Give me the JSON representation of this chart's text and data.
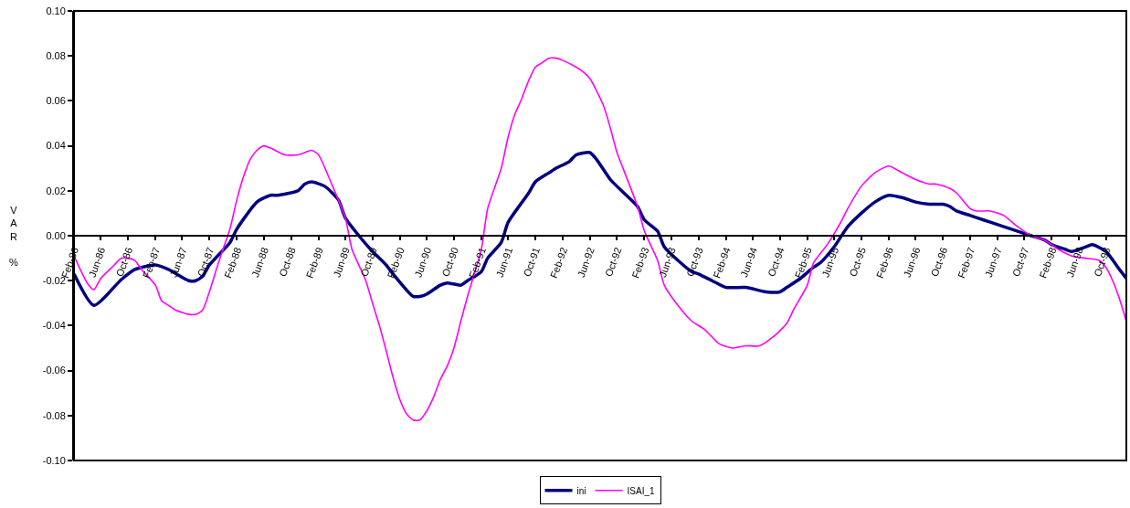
{
  "chart_data": {
    "type": "line",
    "ylabel": "VAR %",
    "legend": "bottom",
    "line_style": "solid",
    "marker": "none",
    "xlim": [
      "1986-02",
      "1999-01"
    ],
    "xticks": [
      {
        "value": "1986-02",
        "label": "Feb-86"
      },
      {
        "value": "1986-06",
        "label": "Jun-86"
      },
      {
        "value": "1986-10",
        "label": "Oct-86"
      },
      {
        "value": "1987-02",
        "label": "Feb-87"
      },
      {
        "value": "1987-06",
        "label": "Jun-87"
      },
      {
        "value": "1987-10",
        "label": "Oct-87"
      },
      {
        "value": "1988-02",
        "label": "Feb-88"
      },
      {
        "value": "1988-06",
        "label": "Jun-88"
      },
      {
        "value": "1988-10",
        "label": "Oct-88"
      },
      {
        "value": "1989-02",
        "label": "Feb-89"
      },
      {
        "value": "1989-06",
        "label": "Jun-89"
      },
      {
        "value": "1989-10",
        "label": "Oct-89"
      },
      {
        "value": "1990-02",
        "label": "Feb-90"
      },
      {
        "value": "1990-06",
        "label": "Jun-90"
      },
      {
        "value": "1990-10",
        "label": "Oct-90"
      },
      {
        "value": "1991-02",
        "label": "Feb-91"
      },
      {
        "value": "1991-06",
        "label": "Jun-91"
      },
      {
        "value": "1991-10",
        "label": "Oct-91"
      },
      {
        "value": "1992-02",
        "label": "Feb-92"
      },
      {
        "value": "1992-06",
        "label": "Jun-92"
      },
      {
        "value": "1992-10",
        "label": "Oct-92"
      },
      {
        "value": "1993-02",
        "label": "Feb-93"
      },
      {
        "value": "1993-06",
        "label": "Jun-93"
      },
      {
        "value": "1993-10",
        "label": "Oct-93"
      },
      {
        "value": "1994-02",
        "label": "Feb-94"
      },
      {
        "value": "1994-06",
        "label": "Jun-94"
      },
      {
        "value": "1994-10",
        "label": "Oct-94"
      },
      {
        "value": "1995-02",
        "label": "Feb-95"
      },
      {
        "value": "1995-06",
        "label": "Jun-95"
      },
      {
        "value": "1995-10",
        "label": "Oct-95"
      },
      {
        "value": "1996-02",
        "label": "Feb-96"
      },
      {
        "value": "1996-06",
        "label": "Jun-96"
      },
      {
        "value": "1996-10",
        "label": "Oct-96"
      },
      {
        "value": "1997-02",
        "label": "Feb-97"
      },
      {
        "value": "1997-06",
        "label": "Jun-97"
      },
      {
        "value": "1997-10",
        "label": "Oct-97"
      },
      {
        "value": "1998-02",
        "label": "Feb-98"
      },
      {
        "value": "1998-06",
        "label": "Jun-98"
      },
      {
        "value": "1998-10",
        "label": "Oct-98"
      }
    ],
    "ylim": [
      -0.1,
      0.1
    ],
    "yticks": [
      {
        "value": -0.1,
        "label": "-0.10"
      },
      {
        "value": -0.08,
        "label": "-0.08"
      },
      {
        "value": -0.06,
        "label": "-0.06"
      },
      {
        "value": -0.04,
        "label": "-0.04"
      },
      {
        "value": -0.02,
        "label": "-0.02"
      },
      {
        "value": 0,
        "label": "0.00"
      },
      {
        "value": 0.02,
        "label": "0.02"
      },
      {
        "value": 0.04,
        "label": "0.04"
      },
      {
        "value": 0.06,
        "label": "0.06"
      },
      {
        "value": 0.08,
        "label": "0.08"
      },
      {
        "value": 0.1,
        "label": "0.10"
      }
    ],
    "series": [
      {
        "name": "ini",
        "color": "#000080",
        "x": [
          "1986-02",
          "1986-05",
          "1986-09",
          "1986-11",
          "1987-02",
          "1987-04",
          "1987-07",
          "1987-08",
          "1987-09",
          "1987-10",
          "1988-01",
          "1988-02",
          "1988-05",
          "1988-07",
          "1988-08",
          "1988-11",
          "1988-12",
          "1989-01",
          "1989-03",
          "1989-05",
          "1989-06",
          "1989-08",
          "1989-10",
          "1989-12",
          "1990-01",
          "1990-04",
          "1990-05",
          "1990-06",
          "1990-08",
          "1990-09",
          "1990-11",
          "1990-12",
          "1991-02",
          "1991-03",
          "1991-05",
          "1991-06",
          "1991-09",
          "1991-10",
          "1991-12",
          "1992-01",
          "1992-03",
          "1992-04",
          "1992-06",
          "1992-07",
          "1992-09",
          "1992-11",
          "1993-01",
          "1993-02",
          "1993-04",
          "1993-05",
          "1993-07",
          "1993-09",
          "1993-10",
          "1993-12",
          "1994-02",
          "1994-05",
          "1994-08",
          "1994-10",
          "1994-11",
          "1995-01",
          "1995-03",
          "1995-04",
          "1995-06",
          "1995-08",
          "1995-10",
          "1995-12",
          "1996-02",
          "1996-04",
          "1996-06",
          "1996-08",
          "1996-10",
          "1996-11",
          "1996-12",
          "1997-02",
          "1997-04",
          "1997-06",
          "1997-07",
          "1997-09",
          "1997-11",
          "1998-01",
          "1998-02",
          "1998-04",
          "1998-05",
          "1998-07",
          "1998-08",
          "1998-10",
          "1998-12",
          "1999-01"
        ],
        "values": [
          -0.017,
          -0.031,
          -0.0195,
          -0.015,
          -0.013,
          -0.015,
          -0.02,
          -0.02,
          -0.018,
          -0.013,
          -0.003,
          0.003,
          0.015,
          0.018,
          0.018,
          0.02,
          0.023,
          0.024,
          0.022,
          0.016,
          0.008,
          0.0,
          -0.007,
          -0.013,
          -0.017,
          -0.027,
          -0.027,
          -0.026,
          -0.022,
          -0.021,
          -0.022,
          -0.02,
          -0.016,
          -0.01,
          -0.003,
          0.006,
          0.019,
          0.024,
          0.028,
          0.03,
          0.033,
          0.036,
          0.037,
          0.034,
          0.025,
          0.019,
          0.013,
          0.007,
          0.002,
          -0.005,
          -0.011,
          -0.016,
          -0.017,
          -0.02,
          -0.023,
          -0.023,
          -0.025,
          -0.025,
          -0.023,
          -0.019,
          -0.014,
          -0.012,
          -0.005,
          0.004,
          0.01,
          0.015,
          0.018,
          0.017,
          0.015,
          0.014,
          0.014,
          0.013,
          0.011,
          0.009,
          0.007,
          0.005,
          0.004,
          0.002,
          0.0,
          -0.002,
          -0.004,
          -0.006,
          -0.007,
          -0.005,
          -0.004,
          -0.007,
          -0.015,
          -0.019
        ]
      },
      {
        "name": "ISAI_1",
        "color": "#ff00ff",
        "x": [
          "1986-02",
          "1986-03",
          "1986-04",
          "1986-05",
          "1986-06",
          "1986-08",
          "1986-09",
          "1986-10",
          "1986-11",
          "1986-12",
          "1987-02",
          "1987-03",
          "1987-04",
          "1987-05",
          "1987-07",
          "1987-08",
          "1987-09",
          "1987-10",
          "1987-11",
          "1987-12",
          "1988-01",
          "1988-02",
          "1988-03",
          "1988-04",
          "1988-05",
          "1988-06",
          "1988-07",
          "1988-09",
          "1988-11",
          "1988-12",
          "1989-01",
          "1989-02",
          "1989-04",
          "1989-06",
          "1989-07",
          "1989-09",
          "1989-10",
          "1989-11",
          "1989-12",
          "1990-01",
          "1990-02",
          "1990-03",
          "1990-04",
          "1990-05",
          "1990-06",
          "1990-07",
          "1990-08",
          "1990-09",
          "1990-10",
          "1990-11",
          "1990-12",
          "1991-02",
          "1991-03",
          "1991-05",
          "1991-06",
          "1991-07",
          "1991-08",
          "1991-09",
          "1991-10",
          "1991-11",
          "1991-12",
          "1992-01",
          "1992-02",
          "1992-04",
          "1992-05",
          "1992-06",
          "1992-08",
          "1992-09",
          "1992-10",
          "1992-11",
          "1993-01",
          "1993-02",
          "1993-04",
          "1993-05",
          "1993-07",
          "1993-09",
          "1993-11",
          "1994-01",
          "1994-03",
          "1994-05",
          "1994-07",
          "1994-09",
          "1994-11",
          "1994-12",
          "1995-02",
          "1995-03",
          "1995-05",
          "1995-07",
          "1995-08",
          "1995-10",
          "1995-12",
          "1996-02",
          "1996-04",
          "1996-06",
          "1996-08",
          "1996-09",
          "1996-11",
          "1996-12",
          "1997-02",
          "1997-03",
          "1997-05",
          "1997-07",
          "1997-09",
          "1997-11",
          "1998-01",
          "1998-03",
          "1998-05",
          "1998-07",
          "1998-09",
          "1998-10",
          "1998-11",
          "1998-12",
          "1999-01"
        ],
        "values": [
          -0.009,
          -0.015,
          -0.021,
          -0.024,
          -0.019,
          -0.013,
          -0.01,
          -0.01,
          -0.011,
          -0.015,
          -0.022,
          -0.029,
          -0.031,
          -0.033,
          -0.035,
          -0.035,
          -0.033,
          -0.025,
          -0.015,
          -0.006,
          0.003,
          0.016,
          0.026,
          0.034,
          0.038,
          0.04,
          0.039,
          0.036,
          0.036,
          0.037,
          0.038,
          0.036,
          0.023,
          0.008,
          -0.006,
          -0.02,
          -0.03,
          -0.04,
          -0.051,
          -0.063,
          -0.073,
          -0.079,
          -0.082,
          -0.082,
          -0.078,
          -0.072,
          -0.064,
          -0.058,
          -0.05,
          -0.038,
          -0.027,
          -0.006,
          0.012,
          0.03,
          0.044,
          0.054,
          0.061,
          0.069,
          0.075,
          0.077,
          0.079,
          0.079,
          0.078,
          0.075,
          0.073,
          0.07,
          0.058,
          0.048,
          0.037,
          0.029,
          0.013,
          0.002,
          -0.011,
          -0.022,
          -0.031,
          -0.038,
          -0.042,
          -0.048,
          -0.05,
          -0.049,
          -0.049,
          -0.045,
          -0.039,
          -0.033,
          -0.022,
          -0.012,
          -0.004,
          0.006,
          0.012,
          0.022,
          0.028,
          0.031,
          0.028,
          0.025,
          0.023,
          0.023,
          0.021,
          0.019,
          0.012,
          0.011,
          0.011,
          0.009,
          0.004,
          0.0,
          -0.002,
          -0.006,
          -0.009,
          -0.01,
          -0.011,
          -0.014,
          -0.02,
          -0.028,
          -0.038
        ]
      }
    ]
  }
}
